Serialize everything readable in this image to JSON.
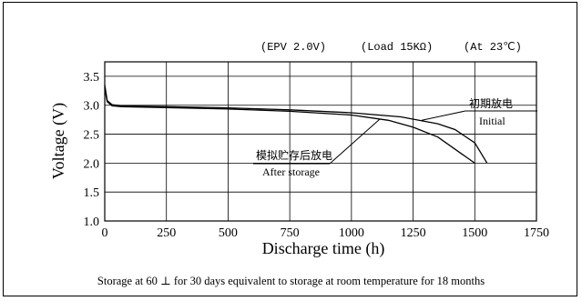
{
  "chart_data": {
    "type": "line",
    "conditions": [
      "(EPV 2.0V)",
      "(Load 15KΩ)",
      "(At 23℃)"
    ],
    "xlabel": "Discharge time (h)",
    "ylabel": "Voltage (V)",
    "xlim": [
      0,
      1750
    ],
    "ylim": [
      1.0,
      3.75
    ],
    "xticks": [
      0,
      250,
      500,
      750,
      1000,
      1250,
      1500,
      1750
    ],
    "yticks": [
      1.0,
      1.5,
      2.0,
      2.5,
      3.0,
      3.5
    ],
    "x_tick_labels": [
      "0",
      "250",
      "500",
      "750",
      "1000",
      "1250",
      "1500",
      "1750"
    ],
    "y_tick_labels": [
      "1.0",
      "1.5",
      "2.0",
      "2.5",
      "3.0",
      "3.5"
    ],
    "grid": true,
    "series": [
      {
        "name": "初期放电",
        "name_en": "Initial",
        "points": [
          [
            0,
            3.35
          ],
          [
            10,
            3.08
          ],
          [
            30,
            3.01
          ],
          [
            70,
            2.99
          ],
          [
            250,
            2.975
          ],
          [
            500,
            2.955
          ],
          [
            750,
            2.92
          ],
          [
            1000,
            2.87
          ],
          [
            1200,
            2.8
          ],
          [
            1350,
            2.68
          ],
          [
            1420,
            2.58
          ],
          [
            1500,
            2.35
          ],
          [
            1550,
            2.0
          ]
        ]
      },
      {
        "name": "模拟贮存后放电",
        "name_en": "After storage",
        "points": [
          [
            0,
            3.3
          ],
          [
            10,
            3.06
          ],
          [
            30,
            2.99
          ],
          [
            70,
            2.975
          ],
          [
            250,
            2.96
          ],
          [
            500,
            2.935
          ],
          [
            750,
            2.895
          ],
          [
            1000,
            2.83
          ],
          [
            1150,
            2.74
          ],
          [
            1250,
            2.62
          ],
          [
            1350,
            2.45
          ],
          [
            1450,
            2.15
          ],
          [
            1500,
            2.0
          ]
        ]
      }
    ],
    "annotations": [
      "初期放电",
      "Initial",
      "模拟贮存后放电",
      "After storage"
    ]
  },
  "footnote": "Storage at 60 ⊥ for 30 days equivalent to storage at room temperature for 18 months"
}
